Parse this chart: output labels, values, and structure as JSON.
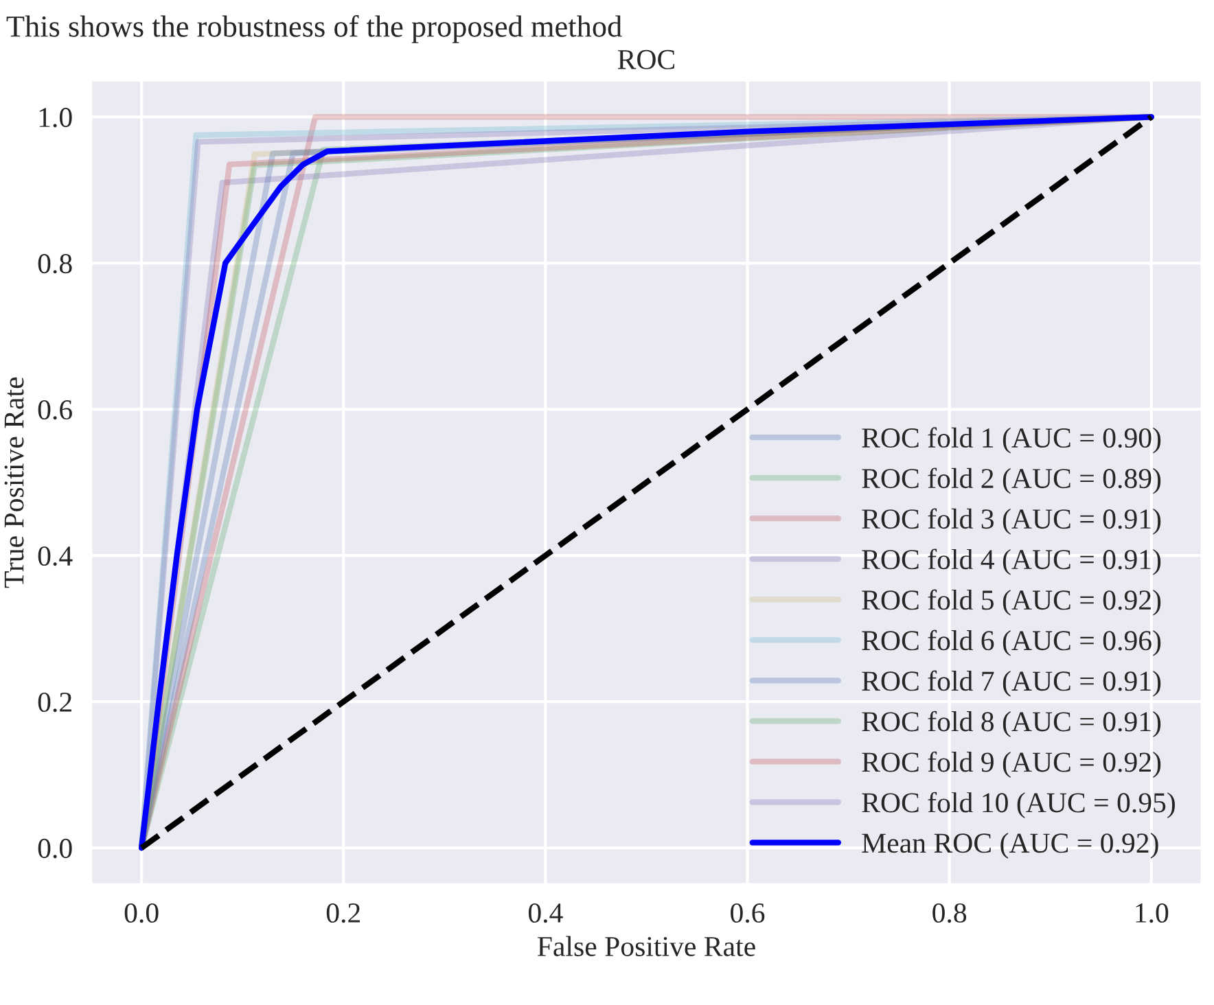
{
  "chart_data": {
    "type": "line",
    "title": "ROC",
    "xlabel": "False Positive Rate",
    "ylabel": "True Positive Rate",
    "annotations": [
      "This shows the robustness of the proposed method"
    ],
    "xlim": [
      -0.05,
      1.05
    ],
    "ylim": [
      -0.05,
      1.05
    ],
    "xticks": [
      {
        "value": 0,
        "label": "0.0"
      },
      0.2,
      0.4,
      0.6,
      0.8,
      {
        "value": 1,
        "label": "1.0"
      }
    ],
    "yticks": [
      {
        "value": 0,
        "label": "0.0"
      },
      0.2,
      0.4,
      0.6,
      0.8,
      {
        "value": 1,
        "label": "1.0"
      }
    ],
    "grid": true,
    "legend": "bottom right",
    "marker": "none",
    "series": [
      {
        "name": "ROC fold 1 (AUC = 0.90)",
        "color": "#4c72b0",
        "x": [
          0,
          0.15,
          1
        ],
        "values": [
          0,
          0.95,
          1
        ]
      },
      {
        "name": "ROC fold 2 (AUC = 0.89)",
        "color": "#55a868",
        "x": [
          0,
          0.18,
          1
        ],
        "values": [
          0,
          0.955,
          1
        ]
      },
      {
        "name": "ROC fold 3 (AUC = 0.91)",
        "color": "#c44e52",
        "x": [
          0,
          0.172,
          1
        ],
        "values": [
          0,
          1.0,
          1
        ]
      },
      {
        "name": "ROC fold 4 (AUC = 0.91)",
        "color": "#8172b2",
        "x": [
          0,
          0.08,
          1
        ],
        "values": [
          0,
          0.91,
          1
        ]
      },
      {
        "name": "ROC fold 5 (AUC = 0.92)",
        "color": "#ccb974",
        "x": [
          0,
          0.112,
          1
        ],
        "values": [
          0,
          0.949,
          1
        ]
      },
      {
        "name": "ROC fold 6 (AUC = 0.96)",
        "color": "#64b5cd",
        "x": [
          0,
          0.054,
          1
        ],
        "values": [
          0,
          0.975,
          1
        ]
      },
      {
        "name": "ROC fold 7 (AUC = 0.91)",
        "color": "#4c72b0",
        "x": [
          0,
          0.13,
          1
        ],
        "values": [
          0,
          0.95,
          1
        ]
      },
      {
        "name": "ROC fold 8 (AUC = 0.91)",
        "color": "#55a868",
        "x": [
          0,
          0.112,
          1
        ],
        "values": [
          0,
          0.934,
          1
        ]
      },
      {
        "name": "ROC fold 9 (AUC = 0.92)",
        "color": "#c44e52",
        "x": [
          0,
          0.087,
          1
        ],
        "values": [
          0,
          0.935,
          1
        ]
      },
      {
        "name": "ROC fold 10 (AUC = 0.95)",
        "color": "#8172b2",
        "x": [
          0,
          0.056,
          1
        ],
        "values": [
          0,
          0.966,
          1
        ]
      },
      {
        "name": "Mean ROC (AUC = 0.92)",
        "color": "#0000ff",
        "x": [
          0,
          0.017,
          0.035,
          0.055,
          0.083,
          0.109,
          0.138,
          0.16,
          0.184,
          0.6,
          1
        ],
        "values": [
          0,
          0.2,
          0.4,
          0.6,
          0.8,
          0.85,
          0.905,
          0.935,
          0.953,
          0.98,
          1
        ]
      },
      {
        "color": "#000000",
        "line_style": "dashed",
        "x": [
          0,
          1
        ],
        "values": [
          0,
          1
        ]
      }
    ]
  }
}
